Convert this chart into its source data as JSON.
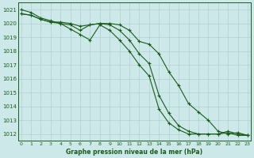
{
  "title": "Graphe pression niveau de la mer (hPa)",
  "background_color": "#cce8e8",
  "grid_color": "#b0d0d0",
  "line_color": "#1a5c1a",
  "x_ticks": [
    0,
    1,
    2,
    3,
    4,
    5,
    6,
    7,
    8,
    9,
    10,
    11,
    12,
    13,
    14,
    15,
    16,
    17,
    18,
    19,
    20,
    21,
    22,
    23
  ],
  "y_ticks": [
    1012,
    1013,
    1014,
    1015,
    1016,
    1017,
    1018,
    1019,
    1020,
    1021
  ],
  "ylim": [
    1011.5,
    1021.5
  ],
  "xlim": [
    -0.3,
    23.3
  ],
  "s1": [
    1021.0,
    1020.8,
    1020.4,
    1020.2,
    1020.0,
    1019.6,
    1019.2,
    1018.8,
    1019.9,
    1019.5,
    1018.8,
    1018.0,
    1017.0,
    1016.2,
    1013.8,
    1012.8,
    1012.3,
    1012.0,
    1012.0,
    1012.0,
    1012.0,
    1012.1,
    1011.9,
    1011.9
  ],
  "s2": [
    1020.7,
    1020.6,
    1020.3,
    1020.1,
    1020.0,
    1019.9,
    1019.5,
    1019.9,
    1020.0,
    1019.9,
    1019.5,
    1018.8,
    1017.8,
    1017.1,
    1014.8,
    1013.5,
    1012.6,
    1012.2,
    1012.0,
    1012.0,
    1012.0,
    1012.2,
    1012.0,
    1011.9
  ],
  "s3": [
    1020.7,
    1020.6,
    1020.3,
    1020.1,
    1020.1,
    1020.0,
    1019.8,
    1019.9,
    1020.0,
    1020.0,
    1019.9,
    1019.5,
    1018.7,
    1018.5,
    1017.8,
    1016.5,
    1015.5,
    1014.2,
    1013.6,
    1013.0,
    1012.2,
    1012.0,
    1012.1,
    1011.9
  ]
}
